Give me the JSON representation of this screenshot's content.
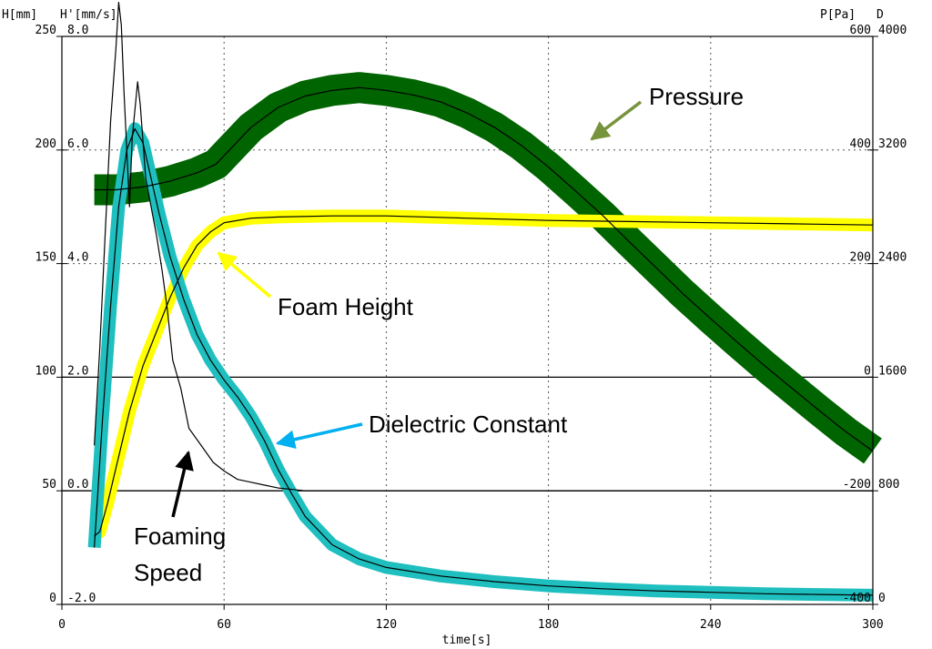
{
  "chart_data": {
    "type": "line",
    "xlabel": "time[s]",
    "xlim": [
      0,
      300
    ],
    "x_ticks": [
      0,
      60,
      120,
      180,
      240,
      300
    ],
    "left_axis_labels": {
      "h": "H[mm]",
      "hprime": "H'[mm/s]"
    },
    "right_axis_labels": {
      "p": "P[Pa]",
      "d": "D"
    },
    "axis_H": {
      "unit": "mm",
      "range": [
        0,
        250
      ],
      "ticks": [
        0,
        50,
        100,
        150,
        200,
        250
      ]
    },
    "axis_Hprime": {
      "unit": "mm/s",
      "range": [
        -2.0,
        8.0
      ],
      "ticks": [
        "-2.0",
        "0.0",
        "2.0",
        "4.0",
        "6.0",
        "8.0"
      ]
    },
    "axis_P": {
      "unit": "Pa",
      "range": [
        -400,
        600
      ],
      "ticks": [
        -400,
        -200,
        0,
        200,
        400,
        600
      ]
    },
    "axis_D": {
      "range": [
        0,
        4000
      ],
      "ticks": [
        0,
        800,
        1600,
        2400,
        3200,
        4000
      ]
    },
    "grid": {
      "vertical": "dashed",
      "horizontal_solid_at_H": [
        50,
        100
      ]
    },
    "series": [
      {
        "name": "Pressure",
        "axis": "P",
        "color": "#006400",
        "x": [
          12,
          20,
          30,
          40,
          50,
          57,
          62,
          70,
          80,
          90,
          100,
          110,
          120,
          130,
          140,
          150,
          160,
          170,
          180,
          190,
          200,
          210,
          220,
          230,
          240,
          250,
          260,
          270,
          280,
          290,
          300
        ],
        "y": [
          330,
          330,
          335,
          345,
          360,
          375,
          400,
          440,
          475,
          495,
          505,
          510,
          505,
          497,
          485,
          465,
          440,
          408,
          370,
          328,
          285,
          238,
          192,
          146,
          103,
          61,
          20,
          -19,
          -58,
          -96,
          -130
        ]
      },
      {
        "name": "Foam Height",
        "axis": "H",
        "color": "#ffff00",
        "x": [
          12,
          14,
          17,
          20,
          25,
          30,
          35,
          40,
          45,
          50,
          55,
          60,
          70,
          80,
          100,
          120,
          150,
          180,
          210,
          240,
          270,
          300
        ],
        "y": [
          30,
          32,
          45,
          60,
          85,
          105,
          120,
          135,
          148,
          158,
          164,
          168,
          170,
          170.5,
          171,
          171,
          170,
          169,
          168.5,
          168,
          167.5,
          167
        ]
      },
      {
        "name": "Dielectric Constant",
        "axis": "D",
        "color": "#1fbfbf",
        "x": [
          12,
          15,
          18,
          21,
          24,
          27,
          30,
          33,
          36,
          40,
          45,
          50,
          55,
          60,
          65,
          70,
          75,
          80,
          85,
          90,
          100,
          110,
          120,
          140,
          160,
          180,
          200,
          220,
          240,
          260,
          280,
          300
        ],
        "y": [
          400,
          1300,
          2100,
          2800,
          3200,
          3350,
          3250,
          3000,
          2750,
          2450,
          2150,
          1900,
          1720,
          1580,
          1460,
          1320,
          1150,
          950,
          780,
          620,
          420,
          320,
          260,
          200,
          160,
          130,
          110,
          95,
          85,
          75,
          70,
          65
        ]
      },
      {
        "name": "Foaming Speed",
        "axis": "Hprime",
        "color": "#000000",
        "x": [
          12,
          14,
          16,
          18,
          20,
          21,
          22,
          23,
          25,
          26,
          28,
          29,
          31,
          33,
          35,
          37,
          39,
          41,
          44,
          47,
          50,
          53,
          56,
          60,
          65,
          70,
          75,
          80,
          90,
          100,
          110,
          120,
          140,
          160,
          180,
          200,
          220,
          240,
          260,
          280,
          300
        ],
        "y": [
          0.8,
          2.5,
          4.5,
          6.5,
          7.8,
          8.6,
          8.2,
          7.0,
          5.0,
          6.2,
          7.2,
          6.8,
          5.5,
          5.0,
          4.5,
          3.9,
          3.2,
          2.3,
          1.8,
          1.1,
          0.9,
          0.7,
          0.5,
          0.35,
          0.2,
          0.15,
          0.1,
          0.05,
          0.0,
          0.0,
          0.0,
          0.0,
          0.0,
          0.0,
          0.0,
          0.0,
          0.0,
          0.0,
          0.0,
          0.0,
          0.0
        ]
      }
    ],
    "annotations": [
      {
        "text": "Pressure",
        "color": "#77933c"
      },
      {
        "text": "Foam Height",
        "color": "#ffff00"
      },
      {
        "text": "Dielectric Constant",
        "color": "#00b0f0"
      },
      {
        "text": "Foaming",
        "color": "#000000"
      },
      {
        "text": "Speed",
        "color": "#000000"
      }
    ]
  }
}
